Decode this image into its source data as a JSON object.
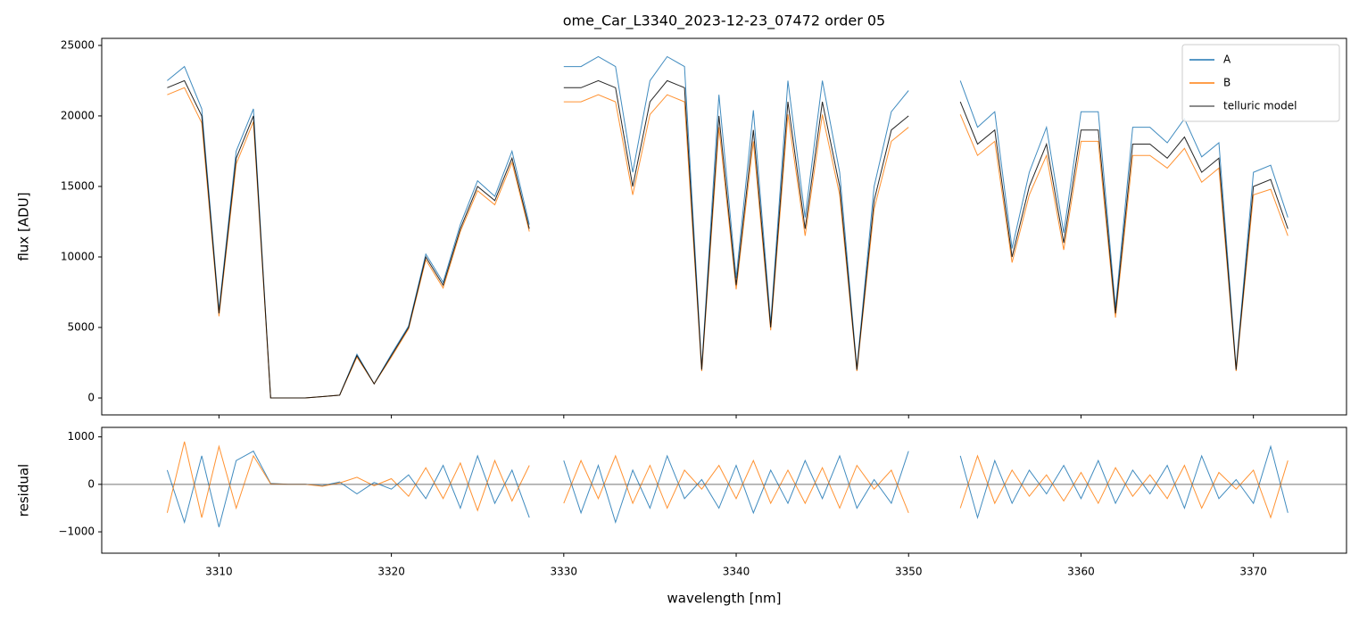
{
  "chart_data": [
    {
      "type": "line",
      "title": "ome_Car_L3340_2023-12-23_07472  order 05",
      "ylabel": "flux [ADU]",
      "x": [
        3307,
        3308,
        3309,
        3310,
        3311,
        3312,
        3313,
        3314,
        3315,
        3316,
        3317,
        3318,
        3319,
        3320,
        3321,
        3322,
        3323,
        3324,
        3325,
        3326,
        3327,
        3328,
        3329,
        3330,
        3331,
        3332,
        3333,
        3334,
        3335,
        3336,
        3337,
        3338,
        3339,
        3340,
        3341,
        3342,
        3343,
        3344,
        3345,
        3346,
        3347,
        3348,
        3349,
        3350,
        3351,
        3352,
        3353,
        3354,
        3355,
        3356,
        3357,
        3358,
        3359,
        3360,
        3361,
        3362,
        3363,
        3364,
        3365,
        3366,
        3367,
        3368,
        3369,
        3370,
        3371,
        3372
      ],
      "series": [
        {
          "name": "A",
          "color": "#1f77b4",
          "values": [
            22500,
            23500,
            20500,
            6200,
            17500,
            20500,
            0,
            0,
            0,
            100,
            200,
            3100,
            1000,
            3100,
            5100,
            10200,
            8200,
            12300,
            15400,
            14300,
            17500,
            12300,
            null,
            23500,
            23500,
            24200,
            23500,
            16000,
            22500,
            24200,
            23500,
            2100,
            21500,
            8500,
            20400,
            5300,
            22500,
            12800,
            22500,
            16000,
            2100,
            15000,
            20300,
            21800,
            null,
            null,
            22500,
            19200,
            20300,
            10600,
            16000,
            19200,
            11700,
            20300,
            20300,
            6400,
            19200,
            19200,
            18100,
            19800,
            17100,
            18100,
            2100,
            16000,
            16500,
            12800
          ]
        },
        {
          "name": "B",
          "color": "#ff7f0e",
          "values": [
            21500,
            22000,
            19500,
            5800,
            16600,
            19600,
            0,
            0,
            0,
            100,
            200,
            2900,
            1000,
            2900,
            4900,
            9800,
            7800,
            11800,
            14700,
            13700,
            16700,
            11800,
            null,
            21000,
            21000,
            21500,
            21000,
            14400,
            20100,
            21500,
            21000,
            1900,
            19200,
            7700,
            18200,
            4800,
            20100,
            11500,
            20100,
            14400,
            1900,
            13400,
            18200,
            19200,
            null,
            null,
            20100,
            17200,
            18200,
            9600,
            14400,
            17200,
            10500,
            18200,
            18200,
            5700,
            17200,
            17200,
            16300,
            17700,
            15300,
            16300,
            1900,
            14400,
            14800,
            11500
          ]
        },
        {
          "name": "telluric model",
          "color": "#000000",
          "values": [
            22000,
            22500,
            20000,
            6000,
            17000,
            20000,
            0,
            0,
            0,
            100,
            200,
            3000,
            1000,
            3000,
            5000,
            10000,
            8000,
            12000,
            15000,
            14000,
            17000,
            12000,
            null,
            22000,
            22000,
            22500,
            22000,
            15000,
            21000,
            22500,
            22000,
            2000,
            20000,
            8000,
            19000,
            5000,
            21000,
            12000,
            21000,
            15000,
            2000,
            14000,
            19000,
            20000,
            null,
            null,
            21000,
            18000,
            19000,
            10000,
            15000,
            18000,
            11000,
            19000,
            19000,
            6000,
            18000,
            18000,
            17000,
            18500,
            16000,
            17000,
            2000,
            15000,
            15500,
            12000
          ]
        }
      ],
      "xlim": [
        3303.2,
        3375.4
      ],
      "ylim": [
        -1200,
        25500
      ],
      "yticks": [
        0,
        5000,
        10000,
        15000,
        20000,
        25000
      ],
      "legend": "upper right"
    },
    {
      "type": "line",
      "ylabel": "residual",
      "xlabel": "wavelength [nm]",
      "x": [
        3307,
        3308,
        3309,
        3310,
        3311,
        3312,
        3313,
        3314,
        3315,
        3316,
        3317,
        3318,
        3319,
        3320,
        3321,
        3322,
        3323,
        3324,
        3325,
        3326,
        3327,
        3328,
        3329,
        3330,
        3331,
        3332,
        3333,
        3334,
        3335,
        3336,
        3337,
        3338,
        3339,
        3340,
        3341,
        3342,
        3343,
        3344,
        3345,
        3346,
        3347,
        3348,
        3349,
        3350,
        3351,
        3352,
        3353,
        3354,
        3355,
        3356,
        3357,
        3358,
        3359,
        3360,
        3361,
        3362,
        3363,
        3364,
        3365,
        3366,
        3367,
        3368,
        3369,
        3370,
        3371,
        3372
      ],
      "series": [
        {
          "name": "A",
          "color": "#1f77b4",
          "values": [
            300,
            -800,
            600,
            -900,
            500,
            700,
            20,
            0,
            0,
            -30,
            50,
            -200,
            40,
            -100,
            200,
            -300,
            400,
            -500,
            600,
            -400,
            300,
            -700,
            null,
            500,
            -600,
            400,
            -800,
            300,
            -500,
            600,
            -300,
            100,
            -500,
            400,
            -600,
            300,
            -400,
            500,
            -300,
            600,
            -500,
            100,
            -400,
            700,
            null,
            null,
            600,
            -700,
            500,
            -400,
            300,
            -200,
            400,
            -300,
            500,
            -400,
            300,
            -200,
            400,
            -500,
            600,
            -300,
            100,
            -400,
            800,
            -600
          ]
        },
        {
          "name": "B",
          "color": "#ff7f0e",
          "values": [
            -600,
            900,
            -700,
            800,
            -500,
            600,
            10,
            0,
            0,
            -40,
            30,
            150,
            -30,
            120,
            -250,
            350,
            -300,
            450,
            -550,
            500,
            -350,
            400,
            null,
            -400,
            500,
            -300,
            600,
            -400,
            400,
            -500,
            300,
            -100,
            400,
            -300,
            500,
            -400,
            300,
            -400,
            350,
            -500,
            400,
            -100,
            300,
            -600,
            null,
            null,
            -500,
            600,
            -400,
            300,
            -250,
            200,
            -350,
            250,
            -400,
            350,
            -250,
            200,
            -300,
            400,
            -500,
            250,
            -100,
            300,
            -700,
            500
          ]
        }
      ],
      "hline": 0,
      "xlim": [
        3303.2,
        3375.4
      ],
      "ylim": [
        -1450,
        1200
      ],
      "xticks": [
        3310,
        3320,
        3330,
        3340,
        3350,
        3360,
        3370
      ],
      "yticks": [
        {
          "value": -1000,
          "label": "−1000"
        },
        0,
        1000
      ]
    }
  ]
}
